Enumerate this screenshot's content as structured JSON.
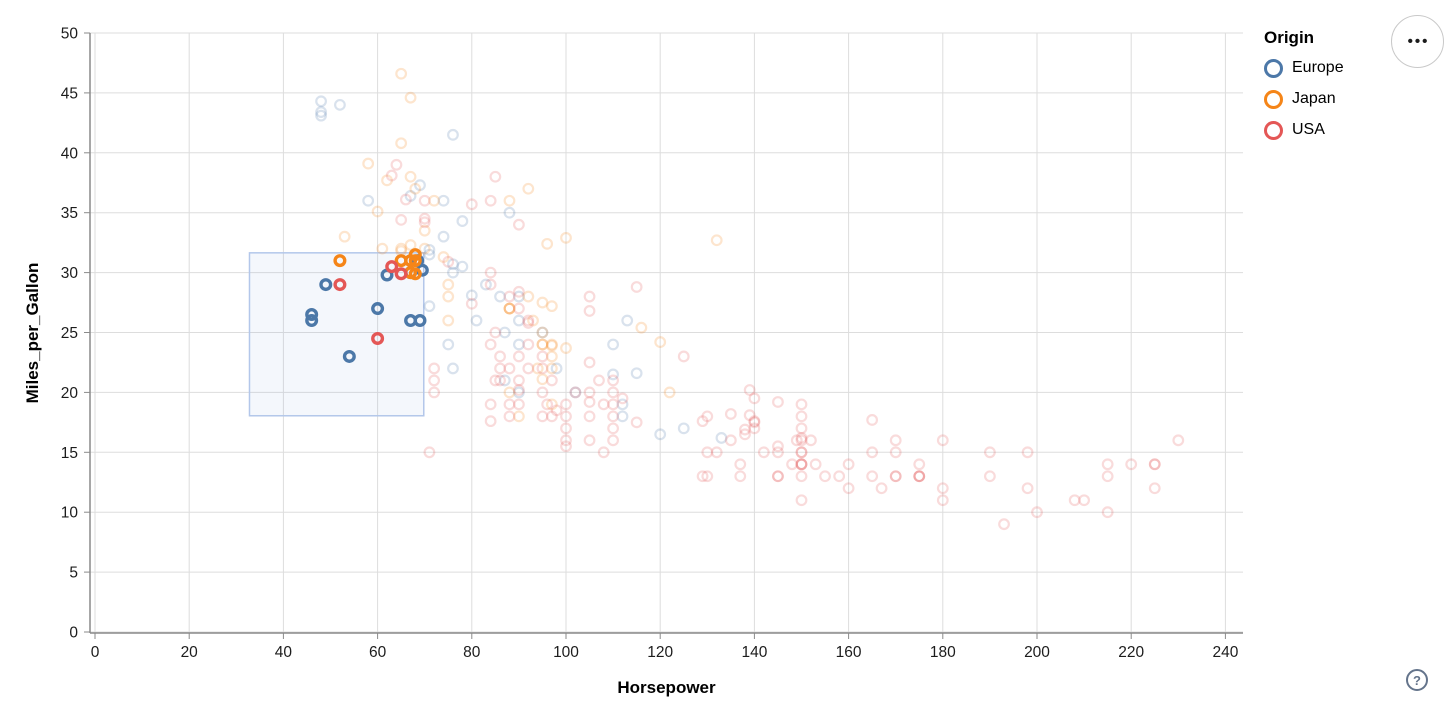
{
  "controls": {
    "menu_button_glyph": "•••",
    "help_glyph": "?"
  },
  "chart_data": {
    "type": "scatter",
    "title": "",
    "xlabel": "Horsepower",
    "ylabel": "Miles_per_Gallon",
    "xlim": [
      0,
      240
    ],
    "ylim": [
      0,
      50
    ],
    "x_ticks": [
      0,
      20,
      40,
      60,
      80,
      100,
      120,
      140,
      160,
      180,
      200,
      220,
      240
    ],
    "y_ticks": [
      0,
      5,
      10,
      15,
      20,
      25,
      30,
      35,
      40,
      45,
      50
    ],
    "grid": true,
    "legend": {
      "title": "Origin",
      "position": "top-right",
      "entries": [
        {
          "label": "Europe",
          "color": "#4c78a8"
        },
        {
          "label": "Japan",
          "color": "#f58518"
        },
        {
          "label": "USA",
          "color": "#e45756"
        }
      ]
    },
    "brush_selection": {
      "hp": [
        32.8,
        69.8
      ],
      "mpg": [
        18.05,
        31.65
      ],
      "fill": "#6e93d6",
      "fill_opacity": 0.08,
      "stroke": "#b3c7ea"
    },
    "point_style": {
      "radius": 4.8,
      "stroke_width": 2.2,
      "selected_stroke_width": 3.4,
      "unselected_opacity": 0.21
    },
    "series": [
      {
        "name": "Europe",
        "color": "#4c78a8",
        "points": [
          [
            48,
            44.3
          ],
          [
            48,
            43.4
          ],
          [
            48,
            43.1
          ],
          [
            52,
            44
          ],
          [
            76,
            41.5
          ],
          [
            69,
            37.3
          ],
          [
            74,
            36
          ],
          [
            58,
            36
          ],
          [
            88,
            35
          ],
          [
            78,
            34.3
          ],
          [
            74,
            33
          ],
          [
            67,
            36.4
          ],
          [
            71,
            31.9
          ],
          [
            71,
            31.5
          ],
          [
            76,
            30.7
          ],
          [
            78,
            30.5
          ],
          [
            80,
            28.1
          ],
          [
            90,
            28
          ],
          [
            86,
            28
          ],
          [
            83,
            29
          ],
          [
            76,
            30
          ],
          [
            87,
            25
          ],
          [
            90,
            24
          ],
          [
            95,
            25
          ],
          [
            113,
            26
          ],
          [
            112,
            18
          ],
          [
            76,
            22
          ],
          [
            87,
            21
          ],
          [
            90,
            20
          ],
          [
            112,
            19
          ],
          [
            110,
            24
          ],
          [
            90,
            26
          ],
          [
            75,
            24
          ],
          [
            81,
            26
          ],
          [
            98,
            22
          ],
          [
            110,
            21.5
          ],
          [
            102,
            20
          ],
          [
            115,
            21.6
          ],
          [
            125,
            17
          ],
          [
            133,
            16.2
          ],
          [
            120,
            16.5
          ],
          [
            71,
            27.2
          ],
          [
            46,
            26
          ],
          [
            46,
            26.5
          ],
          [
            49,
            29
          ],
          [
            54,
            23
          ],
          [
            60,
            27
          ],
          [
            62,
            29.8
          ],
          [
            67,
            26
          ],
          [
            69,
            26
          ],
          [
            67,
            30
          ],
          [
            68.5,
            31
          ],
          [
            69.5,
            30.2
          ]
        ]
      },
      {
        "name": "Japan",
        "color": "#f58518",
        "points": [
          [
            65,
            46.6
          ],
          [
            67,
            44.6
          ],
          [
            65,
            40.8
          ],
          [
            58,
            39.1
          ],
          [
            67,
            38
          ],
          [
            62,
            37.7
          ],
          [
            68,
            37
          ],
          [
            92,
            37
          ],
          [
            60,
            35.1
          ],
          [
            70,
            33.5
          ],
          [
            53,
            33
          ],
          [
            61,
            32
          ],
          [
            70,
            32
          ],
          [
            65,
            32
          ],
          [
            67,
            32.3
          ],
          [
            65,
            31.8
          ],
          [
            72,
            36
          ],
          [
            88,
            36
          ],
          [
            96,
            32.4
          ],
          [
            100,
            32.9
          ],
          [
            132,
            32.7
          ],
          [
            74,
            31.3
          ],
          [
            75,
            29
          ],
          [
            75,
            28
          ],
          [
            75,
            26
          ],
          [
            88,
            27
          ],
          [
            88,
            27
          ],
          [
            88,
            27
          ],
          [
            92,
            28
          ],
          [
            93,
            26
          ],
          [
            95,
            24
          ],
          [
            95,
            25
          ],
          [
            95,
            24
          ],
          [
            97,
            23
          ],
          [
            97,
            24
          ],
          [
            95,
            27.5
          ],
          [
            97,
            27.2
          ],
          [
            97,
            22
          ],
          [
            95,
            21.1
          ],
          [
            97,
            23.9
          ],
          [
            94,
            22
          ],
          [
            88,
            20
          ],
          [
            90,
            18
          ],
          [
            97,
            19
          ],
          [
            122,
            20
          ],
          [
            116,
            25.4
          ],
          [
            120,
            24.2
          ],
          [
            100,
            23.7
          ],
          [
            52,
            31
          ],
          [
            65,
            31
          ],
          [
            67,
            31
          ],
          [
            68,
            31.5
          ],
          [
            68,
            29.9
          ],
          [
            68,
            31
          ],
          [
            67,
            30
          ]
        ]
      },
      {
        "name": "USA",
        "color": "#e45756",
        "points": [
          [
            52,
            29
          ],
          [
            60,
            24.5
          ],
          [
            63,
            30.5
          ],
          [
            65,
            29.9
          ],
          [
            64,
            39
          ],
          [
            63,
            38.1
          ],
          [
            66,
            36.1
          ],
          [
            70,
            36
          ],
          [
            84,
            36
          ],
          [
            65,
            34.4
          ],
          [
            70,
            34.2
          ],
          [
            70,
            34.5
          ],
          [
            85,
            38
          ],
          [
            80,
            35.7
          ],
          [
            90,
            34
          ],
          [
            75,
            30.9
          ],
          [
            84,
            30
          ],
          [
            84,
            29
          ],
          [
            90,
            27
          ],
          [
            88,
            28
          ],
          [
            92,
            26
          ],
          [
            92,
            25.8
          ],
          [
            115,
            28.8
          ],
          [
            105,
            26.8
          ],
          [
            105,
            28
          ],
          [
            90,
            28.4
          ],
          [
            80,
            27.4
          ],
          [
            72,
            22
          ],
          [
            72,
            21
          ],
          [
            72,
            20
          ],
          [
            71,
            15
          ],
          [
            85,
            25
          ],
          [
            84,
            24
          ],
          [
            86,
            23
          ],
          [
            85,
            21
          ],
          [
            84,
            19
          ],
          [
            84,
            17.6
          ],
          [
            86,
            22
          ],
          [
            86,
            21
          ],
          [
            88,
            18
          ],
          [
            88,
            19
          ],
          [
            90,
            21
          ],
          [
            90,
            20.2
          ],
          [
            88,
            22
          ],
          [
            90,
            19
          ],
          [
            92,
            24
          ],
          [
            92,
            22
          ],
          [
            90,
            23
          ],
          [
            95,
            22
          ],
          [
            95,
            23
          ],
          [
            95,
            20
          ],
          [
            95,
            18
          ],
          [
            96,
            19
          ],
          [
            97,
            18
          ],
          [
            97,
            21
          ],
          [
            98,
            18.5
          ],
          [
            100,
            19
          ],
          [
            100,
            18
          ],
          [
            100,
            17
          ],
          [
            100,
            16
          ],
          [
            102,
            20
          ],
          [
            105,
            18
          ],
          [
            105,
            19.2
          ],
          [
            105,
            20
          ],
          [
            105,
            22.5
          ],
          [
            105,
            16
          ],
          [
            107,
            21
          ],
          [
            108,
            19
          ],
          [
            108,
            15
          ],
          [
            110,
            18
          ],
          [
            110,
            19
          ],
          [
            110,
            17
          ],
          [
            110,
            16
          ],
          [
            110,
            21
          ],
          [
            110,
            20
          ],
          [
            115,
            17.5
          ],
          [
            112,
            19.5
          ],
          [
            100,
            15.5
          ],
          [
            125,
            23
          ],
          [
            129,
            17.6
          ],
          [
            129,
            13
          ],
          [
            130,
            13
          ],
          [
            130,
            18
          ],
          [
            130,
            15
          ],
          [
            132,
            15
          ],
          [
            135,
            16
          ],
          [
            135,
            18.2
          ],
          [
            137,
            13
          ],
          [
            137,
            14
          ],
          [
            138,
            16.5
          ],
          [
            138,
            16.9
          ],
          [
            139,
            20.2
          ],
          [
            139,
            18.1
          ],
          [
            140,
            17
          ],
          [
            140,
            17.5
          ],
          [
            140,
            17.6
          ],
          [
            140,
            19.5
          ],
          [
            142,
            15
          ],
          [
            145,
            13
          ],
          [
            145,
            13
          ],
          [
            145,
            15
          ],
          [
            145,
            15.5
          ],
          [
            145,
            19.2
          ],
          [
            148,
            14
          ],
          [
            149,
            16
          ],
          [
            150,
            18
          ],
          [
            150,
            16
          ],
          [
            150,
            15
          ],
          [
            150,
            15
          ],
          [
            150,
            14
          ],
          [
            150,
            14
          ],
          [
            150,
            14
          ],
          [
            150,
            13
          ],
          [
            150,
            11
          ],
          [
            150,
            16.2
          ],
          [
            150,
            17
          ],
          [
            150,
            19
          ],
          [
            152,
            16
          ],
          [
            153,
            14
          ],
          [
            155,
            13
          ],
          [
            158,
            13
          ],
          [
            160,
            14
          ],
          [
            160,
            12
          ],
          [
            165,
            15
          ],
          [
            165,
            13
          ],
          [
            165,
            17.7
          ],
          [
            167,
            12
          ],
          [
            170,
            15
          ],
          [
            170,
            13
          ],
          [
            170,
            13
          ],
          [
            170,
            16
          ],
          [
            175,
            14
          ],
          [
            175,
            13
          ],
          [
            175,
            13
          ],
          [
            175,
            13
          ],
          [
            180,
            12
          ],
          [
            180,
            11
          ],
          [
            180,
            16
          ],
          [
            190,
            15
          ],
          [
            190,
            13
          ],
          [
            193,
            9
          ],
          [
            198,
            15
          ],
          [
            198,
            12
          ],
          [
            200,
            10
          ],
          [
            208,
            11
          ],
          [
            210,
            11
          ],
          [
            215,
            14
          ],
          [
            215,
            13
          ],
          [
            215,
            10
          ],
          [
            220,
            14
          ],
          [
            225,
            14
          ],
          [
            225,
            14
          ],
          [
            225,
            12
          ],
          [
            230,
            16
          ]
        ]
      }
    ]
  }
}
